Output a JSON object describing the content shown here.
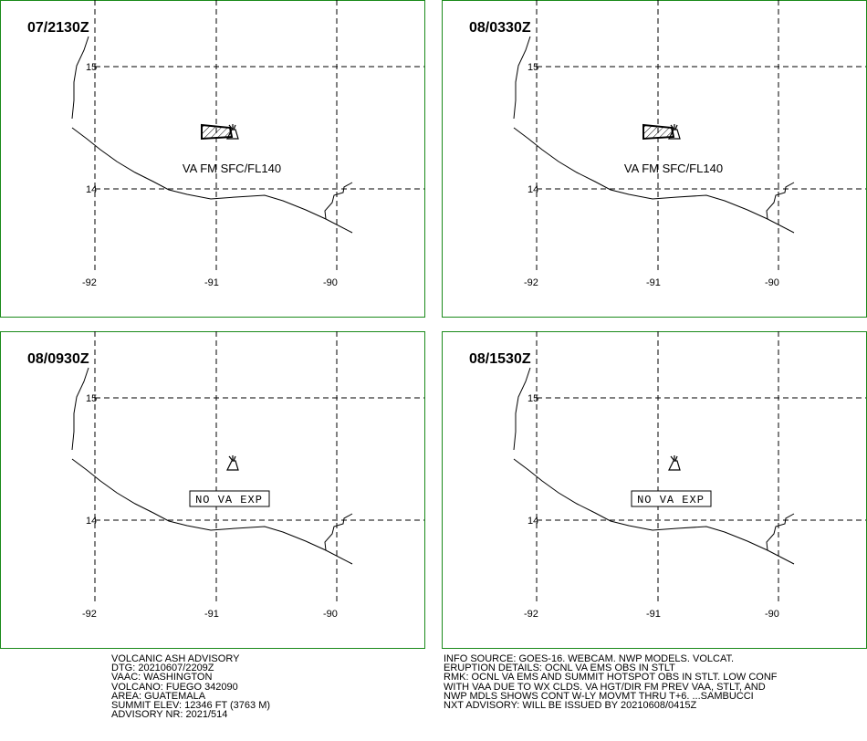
{
  "panels": [
    {
      "time": "07/2130Z",
      "label": "VA FM SFC/FL140",
      "ash": true
    },
    {
      "time": "08/0330Z",
      "label": "VA FM SFC/FL140",
      "ash": true
    },
    {
      "time": "08/0930Z",
      "label": "NO VA EXP",
      "ash": false
    },
    {
      "time": "08/1530Z",
      "label": "NO VA EXP",
      "ash": false
    }
  ],
  "ticks": {
    "lat": [
      "15",
      "14"
    ],
    "lon": [
      "-92",
      "-91",
      "-90"
    ]
  },
  "advisory": {
    "lines": [
      "VOLCANIC ASH ADVISORY",
      "DTG: 20210607/2209Z",
      "VAAC: WASHINGTON",
      "VOLCANO: FUEGO 342090",
      "AREA: GUATEMALA",
      "SUMMIT ELEV: 12346 FT (3763 M)",
      "ADVISORY NR: 2021/514"
    ]
  },
  "info": {
    "lines": [
      "INFO SOURCE: GOES-16. WEBCAM. NWP MODELS. VOLCAT.",
      "ERUPTION DETAILS: OCNL VA EMS OBS IN STLT",
      "RMK: OCNL VA EMS AND SUMMIT HOTSPOT OBS IN STLT. LOW CONF",
      "WITH VAA DUE TO WX CLDS. VA HGT/DIR FM PREV VAA, STLT, AND",
      "NWP MDLS SHOWS CONT W-LY MOVMT THRU T+6. ...SAMBUCCI",
      "NXT ADVISORY: WILL BE ISSUED BY 20210608/0415Z"
    ]
  },
  "colors": {
    "panel_border": "#1a8a1a"
  }
}
